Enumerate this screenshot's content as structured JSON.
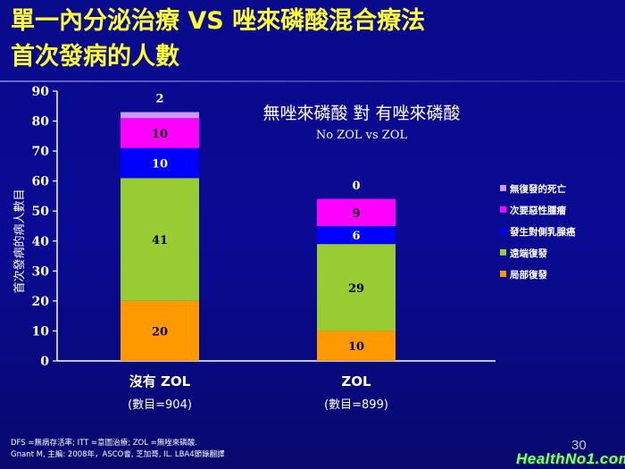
{
  "slide": {
    "title_line1": "單一內分泌治療 VS 唑來磷酸混合療法",
    "title_line2": "首次發病的人數",
    "footnote_line1": "DFS =無病存活率; ITT =意圖治療; ZOL =無唑來磷酸.",
    "footnote_line2": "Gnant M, 主編: 2008年，ASCO會, 芝加哥, IL. LBA4節錄翻譯",
    "page_number": "30",
    "watermark": "HealthNo1.com"
  },
  "chart_data": {
    "type": "bar",
    "stacked": true,
    "title": "無唑來磷酸  對  有唑來磷酸",
    "subtitle": "No ZOL vs ZOL",
    "ylabel": "首次發病的病人數目",
    "ylim": [
      0,
      90
    ],
    "yticks": [
      "0",
      "10",
      "20",
      "30",
      "40",
      "50",
      "60",
      "70",
      "80",
      "90"
    ],
    "categories": [
      "沒有 ZOL",
      "ZOL"
    ],
    "category_sublabels": [
      "(數目=904)",
      "(數目=899)"
    ],
    "legend_position": "right",
    "series": [
      {
        "name": "局部復發",
        "color": "#ff9900",
        "values": [
          20,
          10
        ]
      },
      {
        "name": "遠端復發",
        "color": "#99cc33",
        "values": [
          41,
          29
        ]
      },
      {
        "name": "發生對側乳腺癌",
        "color": "#0000ff",
        "values": [
          10,
          6
        ]
      },
      {
        "name": "次要惡性腫瘤",
        "color": "#ff00ff",
        "values": [
          10,
          9
        ]
      },
      {
        "name": "無復發的死亡",
        "color": "#cc99ff",
        "values": [
          2,
          0
        ]
      }
    ],
    "data_labels": [
      [
        "20",
        "41",
        "10",
        "10",
        "2"
      ],
      [
        "10",
        "29",
        "6",
        "9",
        "0"
      ]
    ]
  }
}
